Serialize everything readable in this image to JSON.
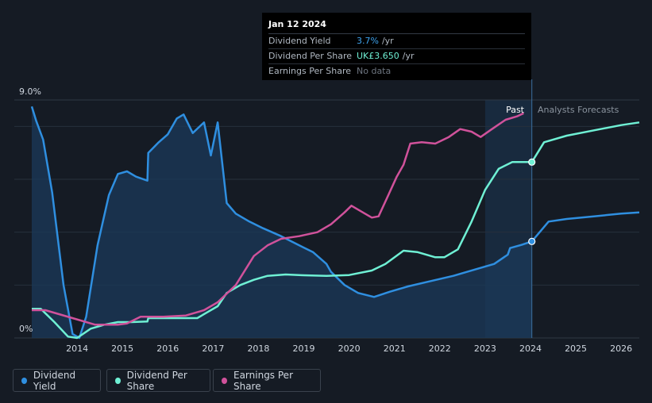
{
  "tooltip": {
    "date": "Jan 12 2024",
    "rows": [
      {
        "label": "Dividend Yield",
        "value": "3.7%",
        "unit": "/yr"
      },
      {
        "label": "Dividend Per Share",
        "value": "UK£3.650",
        "unit": "/yr"
      },
      {
        "label": "Earnings Per Share",
        "value": "No data"
      }
    ]
  },
  "region_labels": {
    "past": "Past",
    "forecast": "Analysts Forecasts"
  },
  "legend": [
    {
      "label": "Dividend Yield",
      "color": "#2f8fe0"
    },
    {
      "label": "Dividend Per Share",
      "color": "#6ff0d4"
    },
    {
      "label": "Earnings Per Share",
      "color": "#d0529b"
    }
  ],
  "chart_data": {
    "type": "line",
    "y_axis": {
      "range": [
        0,
        9.0
      ],
      "unit": "%",
      "tick_labels": [
        "0%",
        "9.0%"
      ]
    },
    "x_axis": {
      "range": [
        2013.0,
        2026.4
      ],
      "tick_labels": [
        "2014",
        "2015",
        "2016",
        "2017",
        "2018",
        "2019",
        "2020",
        "2021",
        "2022",
        "2023",
        "2024",
        "2025",
        "2026"
      ]
    },
    "grid": true,
    "series": [
      {
        "name": "Dividend Yield",
        "color": "#2f8fe0",
        "points": [
          [
            2013.0,
            8.75
          ],
          [
            2013.1,
            8.2
          ],
          [
            2013.25,
            7.5
          ],
          [
            2013.45,
            5.5
          ],
          [
            2013.7,
            2.0
          ],
          [
            2013.9,
            0.15
          ],
          [
            2014.05,
            0.0
          ],
          [
            2014.2,
            0.8
          ],
          [
            2014.45,
            3.5
          ],
          [
            2014.7,
            5.4
          ],
          [
            2014.9,
            6.2
          ],
          [
            2015.1,
            6.3
          ],
          [
            2015.3,
            6.1
          ],
          [
            2015.55,
            5.95
          ],
          [
            2015.57,
            7.0
          ],
          [
            2015.8,
            7.4
          ],
          [
            2016.0,
            7.7
          ],
          [
            2016.2,
            8.3
          ],
          [
            2016.35,
            8.45
          ],
          [
            2016.55,
            7.75
          ],
          [
            2016.8,
            8.15
          ],
          [
            2016.95,
            6.9
          ],
          [
            2017.1,
            8.15
          ],
          [
            2017.3,
            5.1
          ],
          [
            2017.5,
            4.7
          ],
          [
            2017.8,
            4.4
          ],
          [
            2018.1,
            4.15
          ],
          [
            2018.5,
            3.85
          ],
          [
            2018.9,
            3.5
          ],
          [
            2019.2,
            3.25
          ],
          [
            2019.5,
            2.8
          ],
          [
            2019.6,
            2.5
          ],
          [
            2019.9,
            2.0
          ],
          [
            2020.2,
            1.7
          ],
          [
            2020.55,
            1.55
          ],
          [
            2020.9,
            1.75
          ],
          [
            2021.3,
            1.95
          ],
          [
            2021.8,
            2.15
          ],
          [
            2022.3,
            2.35
          ],
          [
            2022.8,
            2.6
          ],
          [
            2023.2,
            2.8
          ],
          [
            2023.5,
            3.15
          ],
          [
            2023.55,
            3.4
          ],
          [
            2023.8,
            3.52
          ],
          [
            2024.03,
            3.65
          ],
          [
            2024.4,
            4.4
          ],
          [
            2024.8,
            4.5
          ],
          [
            2025.4,
            4.6
          ],
          [
            2026.0,
            4.7
          ],
          [
            2026.4,
            4.75
          ]
        ]
      },
      {
        "name": "Dividend Per Share",
        "color": "#6ff0d4",
        "points": [
          [
            2013.0,
            1.1
          ],
          [
            2013.2,
            1.1
          ],
          [
            2013.5,
            0.6
          ],
          [
            2013.8,
            0.05
          ],
          [
            2014.0,
            0.0
          ],
          [
            2014.3,
            0.35
          ],
          [
            2014.6,
            0.5
          ],
          [
            2014.9,
            0.6
          ],
          [
            2015.2,
            0.6
          ],
          [
            2015.55,
            0.62
          ],
          [
            2015.57,
            0.75
          ],
          [
            2016.0,
            0.75
          ],
          [
            2016.4,
            0.75
          ],
          [
            2016.65,
            0.75
          ],
          [
            2016.9,
            1.0
          ],
          [
            2017.1,
            1.2
          ],
          [
            2017.3,
            1.7
          ],
          [
            2017.6,
            2.0
          ],
          [
            2017.9,
            2.2
          ],
          [
            2018.2,
            2.35
          ],
          [
            2018.6,
            2.4
          ],
          [
            2019.0,
            2.37
          ],
          [
            2019.5,
            2.35
          ],
          [
            2020.0,
            2.38
          ],
          [
            2020.5,
            2.55
          ],
          [
            2020.8,
            2.8
          ],
          [
            2021.2,
            3.3
          ],
          [
            2021.5,
            3.25
          ],
          [
            2021.9,
            3.05
          ],
          [
            2022.1,
            3.05
          ],
          [
            2022.4,
            3.35
          ],
          [
            2022.7,
            4.4
          ],
          [
            2023.0,
            5.6
          ],
          [
            2023.3,
            6.4
          ],
          [
            2023.6,
            6.65
          ],
          [
            2024.03,
            6.65
          ],
          [
            2024.3,
            7.4
          ],
          [
            2024.8,
            7.65
          ],
          [
            2025.4,
            7.85
          ],
          [
            2026.0,
            8.05
          ],
          [
            2026.4,
            8.15
          ]
        ]
      },
      {
        "name": "Earnings Per Share",
        "color": "#d0529b",
        "points": [
          [
            2013.0,
            1.05
          ],
          [
            2013.3,
            1.05
          ],
          [
            2013.6,
            0.9
          ],
          [
            2013.9,
            0.75
          ],
          [
            2014.4,
            0.5
          ],
          [
            2014.9,
            0.5
          ],
          [
            2015.1,
            0.55
          ],
          [
            2015.4,
            0.8
          ],
          [
            2015.9,
            0.8
          ],
          [
            2016.4,
            0.85
          ],
          [
            2016.8,
            1.05
          ],
          [
            2017.1,
            1.35
          ],
          [
            2017.5,
            2.0
          ],
          [
            2017.9,
            3.1
          ],
          [
            2018.2,
            3.5
          ],
          [
            2018.5,
            3.75
          ],
          [
            2018.9,
            3.85
          ],
          [
            2019.3,
            4.0
          ],
          [
            2019.6,
            4.3
          ],
          [
            2019.9,
            4.75
          ],
          [
            2020.05,
            5.0
          ],
          [
            2020.3,
            4.75
          ],
          [
            2020.5,
            4.55
          ],
          [
            2020.65,
            4.6
          ],
          [
            2020.85,
            5.35
          ],
          [
            2021.05,
            6.1
          ],
          [
            2021.2,
            6.55
          ],
          [
            2021.35,
            7.35
          ],
          [
            2021.6,
            7.4
          ],
          [
            2021.9,
            7.35
          ],
          [
            2022.2,
            7.6
          ],
          [
            2022.45,
            7.9
          ],
          [
            2022.7,
            7.8
          ],
          [
            2022.9,
            7.6
          ],
          [
            2023.15,
            7.9
          ],
          [
            2023.45,
            8.25
          ],
          [
            2023.7,
            8.38
          ],
          [
            2023.85,
            8.5
          ]
        ]
      }
    ],
    "highlight_points": [
      {
        "series": "Dividend Yield",
        "x": 2024.03,
        "y": 3.65
      },
      {
        "series": "Dividend Per Share",
        "x": 2024.03,
        "y": 6.65
      }
    ],
    "marker_date": 2024.03,
    "past_band_start": 2023.0
  }
}
